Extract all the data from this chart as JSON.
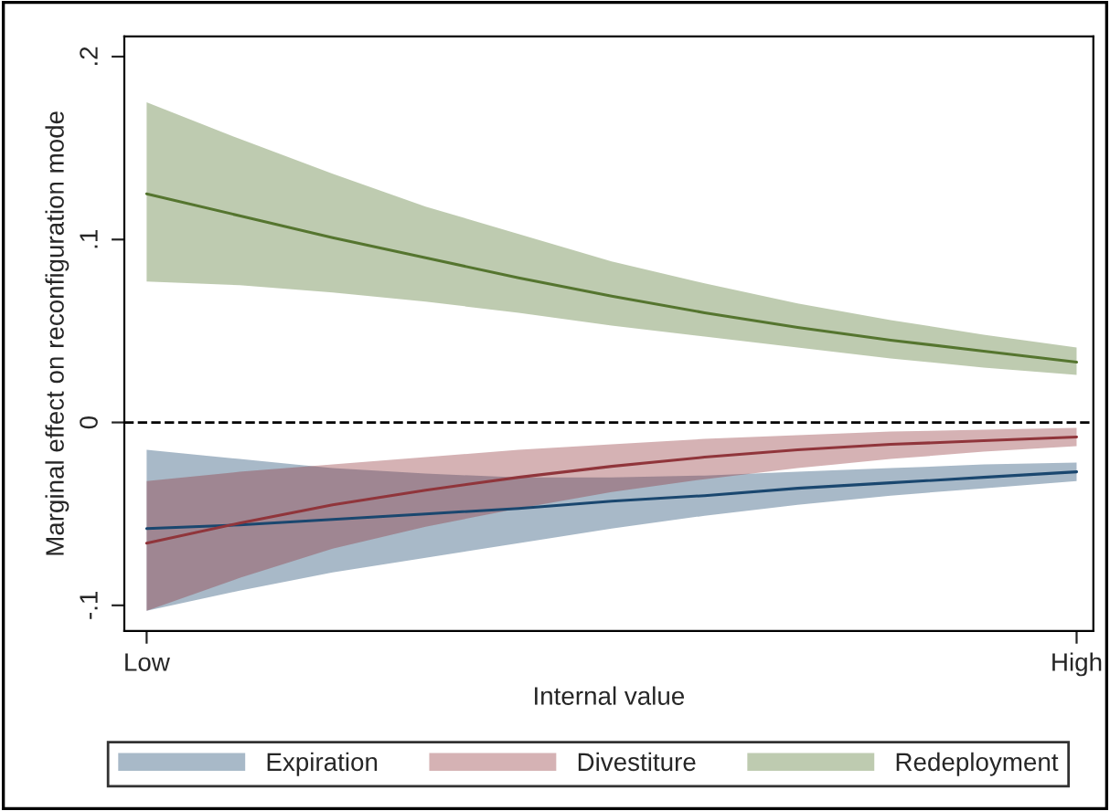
{
  "chart_data": {
    "type": "line",
    "xlabel": "Internal value",
    "ylabel": "Marginal effect on reconfiguration mode",
    "categories": [
      "Low",
      null,
      null,
      null,
      null,
      null,
      null,
      null,
      null,
      null,
      "High"
    ],
    "ylim": [
      -0.114,
      0.211
    ],
    "yticks": [
      {
        "value": -0.1,
        "label": "-.1"
      },
      {
        "value": 0,
        "label": "0"
      },
      {
        "value": 0.1,
        "label": ".1"
      },
      {
        "value": 0.2,
        "label": ".2"
      }
    ],
    "series": [
      {
        "name": "Expiration",
        "color": "#1a476f",
        "values": [
          -0.058,
          -0.056,
          -0.053,
          -0.05,
          -0.047,
          -0.043,
          -0.04,
          -0.036,
          -0.033,
          -0.03,
          -0.027
        ],
        "upper": [
          -0.015,
          -0.02,
          -0.025,
          -0.028,
          -0.03,
          -0.03,
          -0.029,
          -0.027,
          -0.025,
          -0.023,
          -0.022
        ],
        "lower": [
          -0.103,
          -0.092,
          -0.082,
          -0.074,
          -0.066,
          -0.058,
          -0.051,
          -0.045,
          -0.04,
          -0.036,
          -0.032
        ]
      },
      {
        "name": "Divestiture",
        "color": "#90353b",
        "values": [
          -0.066,
          -0.055,
          -0.045,
          -0.037,
          -0.03,
          -0.024,
          -0.019,
          -0.015,
          -0.012,
          -0.01,
          -0.008
        ],
        "upper": [
          -0.032,
          -0.027,
          -0.023,
          -0.019,
          -0.015,
          -0.012,
          -0.009,
          -0.007,
          -0.005,
          -0.004,
          -0.003
        ],
        "lower": [
          -0.103,
          -0.085,
          -0.069,
          -0.057,
          -0.047,
          -0.038,
          -0.031,
          -0.025,
          -0.02,
          -0.016,
          -0.013
        ]
      },
      {
        "name": "Redeployment",
        "color": "#55752f",
        "values": [
          0.125,
          0.113,
          0.101,
          0.09,
          0.079,
          0.069,
          0.06,
          0.052,
          0.045,
          0.039,
          0.033
        ],
        "upper": [
          0.175,
          0.155,
          0.136,
          0.118,
          0.103,
          0.088,
          0.076,
          0.065,
          0.056,
          0.048,
          0.041
        ],
        "lower": [
          0.077,
          0.075,
          0.071,
          0.066,
          0.06,
          0.053,
          0.047,
          0.041,
          0.035,
          0.03,
          0.026
        ]
      }
    ],
    "ref_lines": [
      {
        "axis": "y",
        "value": 0,
        "color": "#000000",
        "line_style": "dashed"
      }
    ],
    "grid": false,
    "legend": "bottom",
    "marker": "none",
    "line_style": "solid"
  }
}
